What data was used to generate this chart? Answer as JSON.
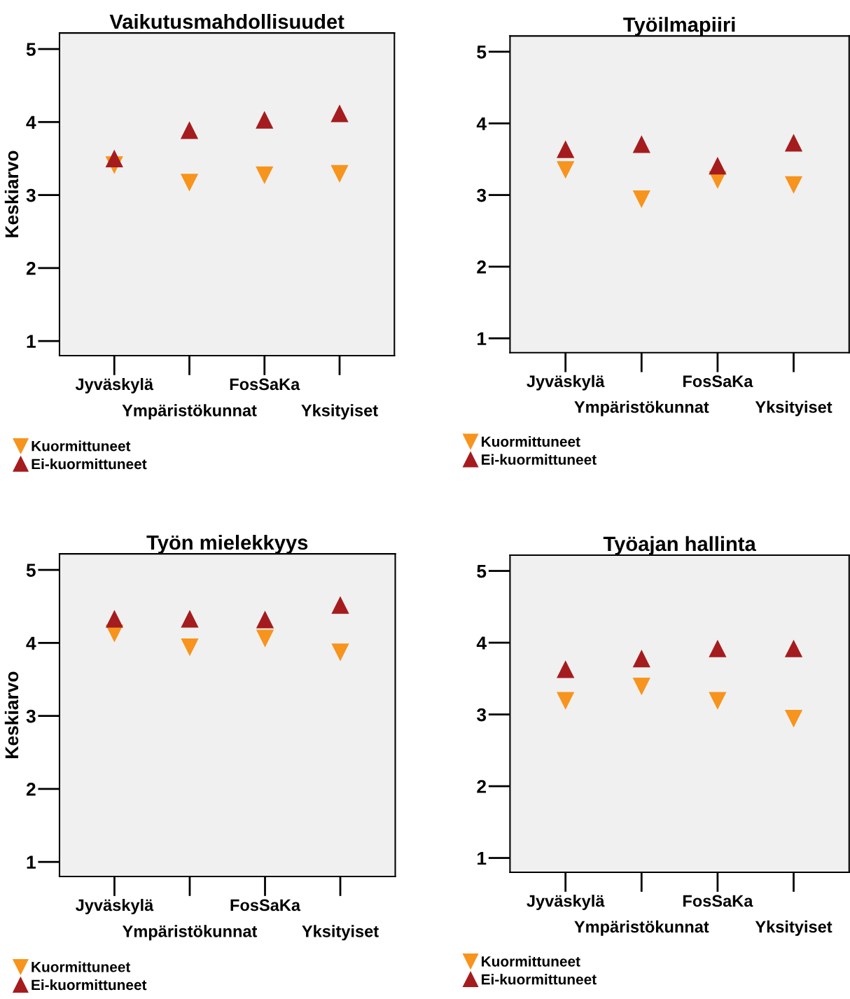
{
  "chart_data": [
    {
      "type": "scatter",
      "title": "Vaikutusmahdollisuudet",
      "ylabel": "Keskiarvo",
      "categories": [
        "Jyväskylä",
        "Ympäristökunnat",
        "FosSaKa",
        "Yksityiset"
      ],
      "ylim": [
        0.8,
        5.22
      ],
      "yticks": [
        1,
        2,
        3,
        4,
        5
      ],
      "grid": false,
      "legend": "bottom",
      "series": [
        {
          "name": "Kuormittuneet",
          "color": "#f7941d",
          "marker": "triangle_down",
          "values": [
            3.41,
            3.17,
            3.27,
            3.29
          ]
        },
        {
          "name": "Ei-kuormittuneet",
          "color": "#a51c1e",
          "marker": "triangle",
          "values": [
            3.5,
            3.89,
            4.03,
            4.12
          ]
        }
      ]
    },
    {
      "type": "scatter",
      "title": "Työilmapiiri",
      "categories": [
        "Jyväskylä",
        "Ympäristökunnat",
        "FosSaKa",
        "Yksityiset"
      ],
      "ylim": [
        0.8,
        5.22
      ],
      "yticks": [
        1,
        2,
        3,
        4,
        5
      ],
      "grid": false,
      "legend": "bottom",
      "series": [
        {
          "name": "Kuormittuneet",
          "color": "#f7941d",
          "marker": "triangle_down",
          "values": [
            3.35,
            2.94,
            3.21,
            3.14
          ]
        },
        {
          "name": "Ei-kuormittuneet",
          "color": "#a51c1e",
          "marker": "triangle",
          "values": [
            3.64,
            3.71,
            3.41,
            3.73
          ]
        }
      ]
    },
    {
      "type": "scatter",
      "title": "Työn mielekkyys",
      "ylabel": "Keskiarvo",
      "categories": [
        "Jyväskylä",
        "Ympäristökunnat",
        "FosSaKa",
        "Yksityiset"
      ],
      "ylim": [
        0.8,
        5.22
      ],
      "yticks": [
        1,
        2,
        3,
        4,
        5
      ],
      "grid": false,
      "legend": "bottom",
      "series": [
        {
          "name": "Kuormittuneet",
          "color": "#f7941d",
          "marker": "triangle_down",
          "values": [
            4.13,
            3.94,
            4.06,
            3.87
          ]
        },
        {
          "name": "Ei-kuormittuneet",
          "color": "#a51c1e",
          "marker": "triangle",
          "values": [
            4.33,
            4.33,
            4.32,
            4.52
          ]
        }
      ]
    },
    {
      "type": "scatter",
      "title": "Työajan hallinta",
      "categories": [
        "Jyväskylä",
        "Ympäristökunnat",
        "FosSaKa",
        "Yksityiset"
      ],
      "ylim": [
        0.8,
        5.22
      ],
      "yticks": [
        1,
        2,
        3,
        4,
        5
      ],
      "grid": false,
      "legend": "bottom",
      "series": [
        {
          "name": "Kuormittuneet",
          "color": "#f7941d",
          "marker": "triangle_down",
          "values": [
            3.19,
            3.39,
            3.19,
            2.94
          ]
        },
        {
          "name": "Ei-kuormittuneet",
          "color": "#a51c1e",
          "marker": "triangle",
          "values": [
            3.63,
            3.78,
            3.92,
            3.92
          ]
        }
      ]
    }
  ]
}
